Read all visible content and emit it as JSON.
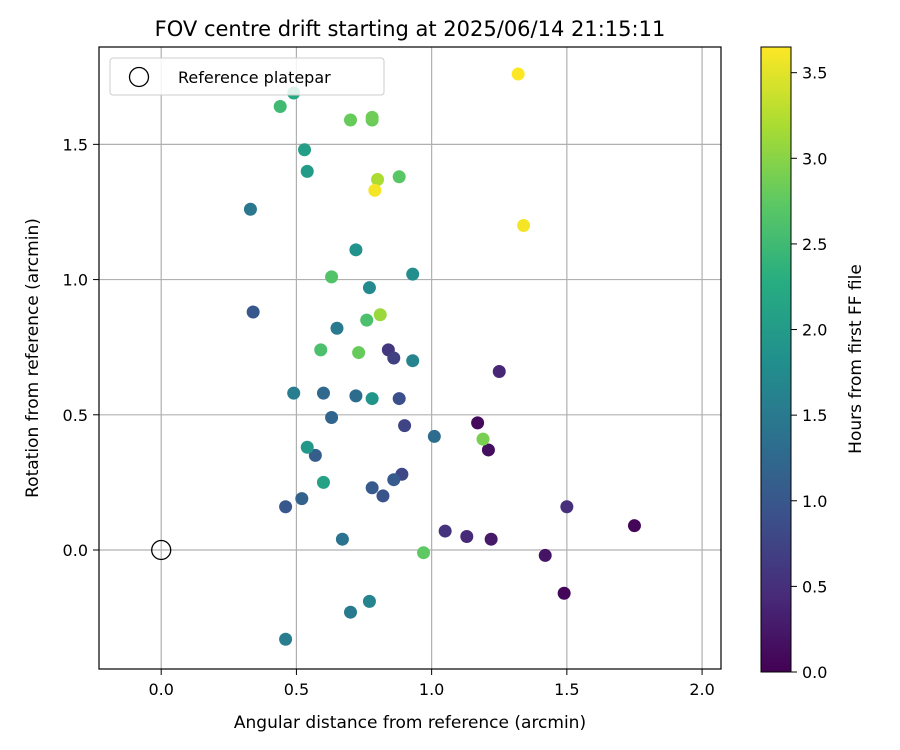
{
  "chart_data": {
    "type": "scatter",
    "title": "FOV centre drift starting at 2025/06/14 21:15:11",
    "xlabel": "Angular distance from reference (arcmin)",
    "ylabel": "Rotation from reference (arcmin)",
    "colorbar_label": "Hours from first FF file",
    "xlim": [
      -0.23,
      2.07
    ],
    "ylim": [
      -0.44,
      1.86
    ],
    "clim": [
      0.0,
      3.65
    ],
    "xticks": [
      "0.0",
      "0.5",
      "1.0",
      "1.5",
      "2.0"
    ],
    "xtick_values": [
      0.0,
      0.5,
      1.0,
      1.5,
      2.0
    ],
    "yticks": [
      "0.0",
      "0.5",
      "1.0",
      "1.5"
    ],
    "ytick_values": [
      0.0,
      0.5,
      1.0,
      1.5
    ],
    "colorbar_ticks": [
      "0.0",
      "0.5",
      "1.0",
      "1.5",
      "2.0",
      "2.5",
      "3.0",
      "3.5"
    ],
    "colorbar_tick_values": [
      0.0,
      0.5,
      1.0,
      1.5,
      2.0,
      2.5,
      3.0,
      3.5
    ],
    "grid": true,
    "colormap": "viridis",
    "legend": {
      "position": "top-left",
      "entries": [
        "Reference platepar"
      ]
    },
    "reference_point": {
      "x": 0.0,
      "y": 0.0
    },
    "points": [
      {
        "x": 1.75,
        "y": 0.09,
        "c": 0.05
      },
      {
        "x": 1.49,
        "y": -0.16,
        "c": 0.05
      },
      {
        "x": 1.17,
        "y": 0.47,
        "c": 0.1
      },
      {
        "x": 1.21,
        "y": 0.37,
        "c": 0.15
      },
      {
        "x": 1.42,
        "y": -0.02,
        "c": 0.2
      },
      {
        "x": 1.22,
        "y": 0.04,
        "c": 0.25
      },
      {
        "x": 1.25,
        "y": 0.66,
        "c": 0.4
      },
      {
        "x": 1.13,
        "y": 0.05,
        "c": 0.45
      },
      {
        "x": 1.5,
        "y": 0.16,
        "c": 0.5
      },
      {
        "x": 1.05,
        "y": 0.07,
        "c": 0.55
      },
      {
        "x": 0.84,
        "y": 0.74,
        "c": 0.6
      },
      {
        "x": 0.86,
        "y": 0.71,
        "c": 0.7
      },
      {
        "x": 0.9,
        "y": 0.46,
        "c": 0.75
      },
      {
        "x": 0.89,
        "y": 0.28,
        "c": 0.8
      },
      {
        "x": 0.88,
        "y": 0.56,
        "c": 0.9
      },
      {
        "x": 0.82,
        "y": 0.2,
        "c": 0.95
      },
      {
        "x": 0.34,
        "y": 0.88,
        "c": 1.0
      },
      {
        "x": 0.46,
        "y": 0.16,
        "c": 1.0
      },
      {
        "x": 0.78,
        "y": 0.23,
        "c": 1.05
      },
      {
        "x": 0.86,
        "y": 0.26,
        "c": 1.05
      },
      {
        "x": 0.57,
        "y": 0.35,
        "c": 1.1
      },
      {
        "x": 0.52,
        "y": 0.19,
        "c": 1.15
      },
      {
        "x": 0.63,
        "y": 0.49,
        "c": 1.2
      },
      {
        "x": 0.6,
        "y": 0.58,
        "c": 1.25
      },
      {
        "x": 0.72,
        "y": 0.57,
        "c": 1.3
      },
      {
        "x": 1.01,
        "y": 0.42,
        "c": 1.3
      },
      {
        "x": 0.67,
        "y": 0.04,
        "c": 1.4
      },
      {
        "x": 0.33,
        "y": 1.26,
        "c": 1.45
      },
      {
        "x": 0.65,
        "y": 0.82,
        "c": 1.5
      },
      {
        "x": 0.49,
        "y": 0.58,
        "c": 1.55
      },
      {
        "x": 0.7,
        "y": -0.23,
        "c": 1.5
      },
      {
        "x": 0.46,
        "y": -0.33,
        "c": 1.55
      },
      {
        "x": 0.77,
        "y": -0.19,
        "c": 1.65
      },
      {
        "x": 0.93,
        "y": 0.7,
        "c": 1.65
      },
      {
        "x": 0.77,
        "y": 0.97,
        "c": 1.75
      },
      {
        "x": 0.93,
        "y": 1.02,
        "c": 1.8
      },
      {
        "x": 0.72,
        "y": 1.11,
        "c": 1.85
      },
      {
        "x": 0.78,
        "y": 0.56,
        "c": 1.9
      },
      {
        "x": 0.54,
        "y": 0.38,
        "c": 1.95
      },
      {
        "x": 0.54,
        "y": 1.4,
        "c": 2.0
      },
      {
        "x": 0.53,
        "y": 1.48,
        "c": 2.05
      },
      {
        "x": 0.6,
        "y": 0.25,
        "c": 2.1
      },
      {
        "x": 0.49,
        "y": 1.69,
        "c": 2.2
      },
      {
        "x": 0.44,
        "y": 1.64,
        "c": 2.5
      },
      {
        "x": 0.76,
        "y": 0.85,
        "c": 2.6
      },
      {
        "x": 0.59,
        "y": 0.74,
        "c": 2.6
      },
      {
        "x": 0.63,
        "y": 1.01,
        "c": 2.65
      },
      {
        "x": 0.88,
        "y": 1.38,
        "c": 2.7
      },
      {
        "x": 0.97,
        "y": -0.01,
        "c": 2.75
      },
      {
        "x": 0.73,
        "y": 0.73,
        "c": 2.8
      },
      {
        "x": 0.7,
        "y": 1.59,
        "c": 2.8
      },
      {
        "x": 0.78,
        "y": 1.59,
        "c": 2.8
      },
      {
        "x": 0.78,
        "y": 1.6,
        "c": 2.85
      },
      {
        "x": 1.19,
        "y": 0.41,
        "c": 2.9
      },
      {
        "x": 0.81,
        "y": 0.87,
        "c": 3.1
      },
      {
        "x": 0.8,
        "y": 1.37,
        "c": 3.2
      },
      {
        "x": 0.79,
        "y": 1.33,
        "c": 3.6
      },
      {
        "x": 1.34,
        "y": 1.2,
        "c": 3.6
      },
      {
        "x": 1.32,
        "y": 1.76,
        "c": 3.65
      }
    ]
  }
}
